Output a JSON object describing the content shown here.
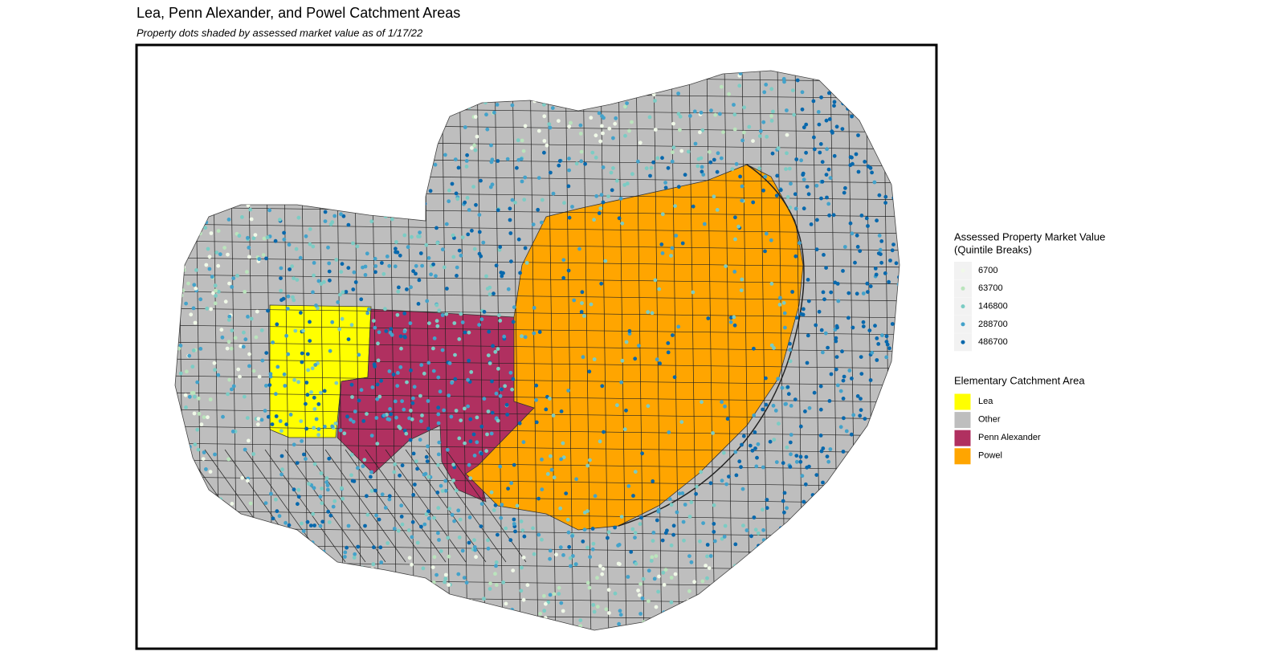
{
  "title": "Lea, Penn Alexander, and Powel Catchment Areas",
  "subtitle": "Property dots shaded by assessed market value as of 1/17/22",
  "value_legend": {
    "title": "Assessed Property Market Value",
    "subtitle": "(Quintile Breaks)",
    "items": [
      {
        "label": 6700,
        "color": "#f0f9e8"
      },
      {
        "label": 63700,
        "color": "#bae4bc"
      },
      {
        "label": 146800,
        "color": "#7bccc4"
      },
      {
        "label": 288700,
        "color": "#43a2ca"
      },
      {
        "label": 486700,
        "color": "#0868ac"
      }
    ]
  },
  "area_legend": {
    "title": "Elementary Catchment Area",
    "items": [
      {
        "label": "Lea",
        "color": "#ffff00"
      },
      {
        "label": "Other",
        "color": "#bebebe"
      },
      {
        "label": "Penn Alexander",
        "color": "#b03060"
      },
      {
        "label": "Powel",
        "color": "#ffa500"
      }
    ]
  }
}
